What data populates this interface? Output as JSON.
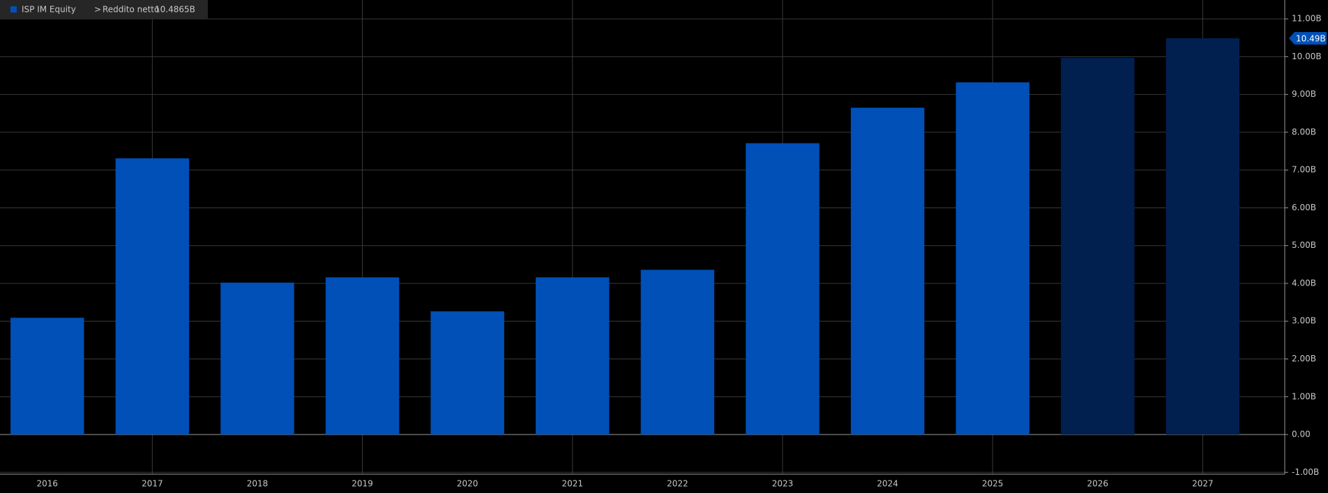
{
  "chart_data": {
    "type": "bar",
    "header_security": "ISP IM Equity",
    "header_separator": ">",
    "header_field": "Reddito netto",
    "header_value": "10.4865B",
    "categories": [
      "2016",
      "2017",
      "2018",
      "2019",
      "2020",
      "2021",
      "2022",
      "2023",
      "2024",
      "2025",
      "2026",
      "2027"
    ],
    "values": [
      3.09,
      7.31,
      4.02,
      4.16,
      3.26,
      4.16,
      4.36,
      7.71,
      8.65,
      9.32,
      9.97,
      10.4865
    ],
    "value_labels": [
      null,
      null,
      null,
      null,
      null,
      null,
      null,
      null,
      null,
      null,
      null,
      "10.49B"
    ],
    "colors": [
      "#0050b8",
      "#0050b8",
      "#0050b8",
      "#0050b8",
      "#0050b8",
      "#0050b8",
      "#0050b8",
      "#0050b8",
      "#0050b8",
      "#0050b8",
      "#012050",
      "#012050"
    ],
    "ylim": [
      -1.05,
      11.5
    ],
    "yticks": [
      {
        "value": -1,
        "label": "-1.00B"
      },
      {
        "value": 0,
        "label": "0.00"
      },
      {
        "value": 1,
        "label": "1.00B"
      },
      {
        "value": 2,
        "label": "2.00B"
      },
      {
        "value": 3,
        "label": "3.00B"
      },
      {
        "value": 4,
        "label": "4.00B"
      },
      {
        "value": 5,
        "label": "5.00B"
      },
      {
        "value": 6,
        "label": "6.00B"
      },
      {
        "value": 7,
        "label": "7.00B"
      },
      {
        "value": 8,
        "label": "8.00B"
      },
      {
        "value": 9,
        "label": "9.00B"
      },
      {
        "value": 10,
        "label": "10.00B"
      },
      {
        "value": 11,
        "label": "11.00B"
      }
    ],
    "grid": true
  }
}
